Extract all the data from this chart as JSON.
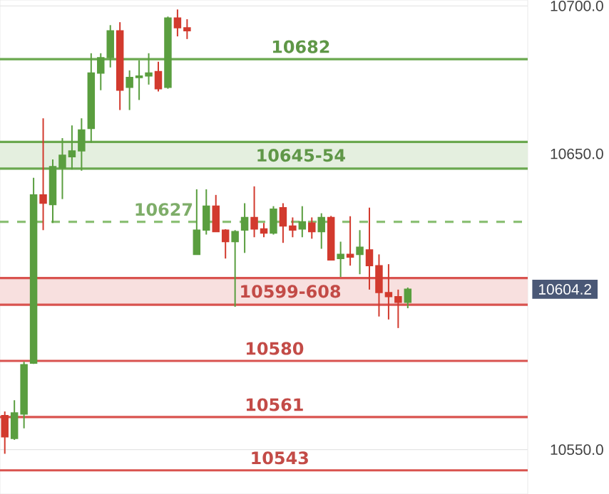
{
  "chart_data": {
    "type": "candlestick",
    "categories": [
      null,
      null,
      null,
      null,
      null,
      null,
      null,
      null,
      null,
      null,
      null,
      null,
      null,
      null,
      null,
      null,
      null,
      null,
      null,
      null,
      null,
      null,
      null,
      null,
      null,
      null,
      null,
      null,
      null,
      null,
      null,
      null,
      null,
      null,
      null,
      null,
      null,
      null,
      null,
      null,
      null,
      null,
      null,
      null,
      null,
      null,
      null,
      null,
      null,
      null,
      null,
      null,
      null,
      null,
      null
    ],
    "ohlc": [
      [
        10561.5,
        10562.9,
        10548.6,
        10554.3
      ],
      [
        10553.8,
        10566.7,
        10553.3,
        10562.4
      ],
      [
        10562.0,
        10579.7,
        10557.2,
        10578.7
      ],
      [
        10579.2,
        10641.9,
        10579.0,
        10636.1
      ],
      [
        10636.1,
        10662.0,
        10624.2,
        10633.3
      ],
      [
        10632.8,
        10648.1,
        10626.6,
        10645.7
      ],
      [
        10645.2,
        10655.3,
        10634.7,
        10649.5
      ],
      [
        10649.0,
        10659.6,
        10644.7,
        10651.0
      ],
      [
        10651.0,
        10662.0,
        10644.3,
        10658.1
      ],
      [
        10658.6,
        10684.0,
        10653.8,
        10677.3
      ],
      [
        10677.3,
        10684.0,
        10671.5,
        10682.5
      ],
      [
        10682.5,
        10693.5,
        10679.2,
        10691.6
      ],
      [
        10691.6,
        10694.5,
        10664.8,
        10671.5
      ],
      [
        10672.5,
        10678.2,
        10664.8,
        10675.8
      ],
      [
        10675.8,
        10681.6,
        10668.2,
        10676.3
      ],
      [
        10676.3,
        10684.0,
        10673.4,
        10677.3
      ],
      [
        10677.8,
        10681.1,
        10671.1,
        10672.0
      ],
      [
        10672.5,
        10696.4,
        10672.0,
        10695.9
      ],
      [
        10695.9,
        10698.8,
        10689.7,
        10692.6
      ],
      [
        10692.6,
        10695.5,
        10688.8,
        10691.6
      ],
      [
        10616.0,
        10638.0,
        10616.0,
        10624.2
      ],
      [
        10624.2,
        10638.0,
        10622.7,
        10632.3
      ],
      [
        10632.3,
        10636.1,
        10623.7,
        10623.7
      ],
      [
        10624.2,
        10624.5,
        10614.6,
        10620.3
      ],
      [
        10620.3,
        10624.2,
        10598.3,
        10623.7
      ],
      [
        10624.2,
        10633.3,
        10616.5,
        10628.5
      ],
      [
        10628.5,
        10639.0,
        10621.8,
        10624.6
      ],
      [
        10624.6,
        10626.6,
        10621.8,
        10623.2
      ],
      [
        10623.2,
        10632.3,
        10622.7,
        10631.3
      ],
      [
        10631.8,
        10633.3,
        10619.9,
        10625.6
      ],
      [
        10625.6,
        10628.5,
        10621.8,
        10624.2
      ],
      [
        10624.6,
        10632.3,
        10621.8,
        10627.0
      ],
      [
        10626.6,
        10628.5,
        10621.3,
        10623.7
      ],
      [
        10623.7,
        10629.9,
        10617.9,
        10628.5
      ],
      [
        10628.5,
        10629.0,
        10614.0,
        10614.1
      ],
      [
        10614.6,
        10620.3,
        10608.4,
        10616.0
      ],
      [
        10616.0,
        10628.9,
        10612.2,
        10615.1
      ],
      [
        10616.0,
        10624.2,
        10609.3,
        10618.4
      ],
      [
        10617.5,
        10631.8,
        10604.1,
        10612.2
      ],
      [
        10612.2,
        10616.0,
        10595.0,
        10603.1
      ],
      [
        10603.1,
        10612.7,
        10594.0,
        10601.7
      ],
      [
        10601.7,
        10604.1,
        10591.1,
        10599.8
      ],
      [
        10599.8,
        10604.8,
        10597.8,
        10604.2
      ],
      null,
      null,
      null,
      null,
      null,
      null,
      null,
      null,
      null,
      null,
      null,
      null
    ],
    "colors": [
      "#d23a2e",
      "#5a9e3f",
      "#5a9e3f",
      "#5a9e3f",
      "#d23a2e",
      "#5a9e3f",
      "#5a9e3f",
      "#5a9e3f",
      "#5a9e3f",
      "#5a9e3f",
      "#5a9e3f",
      "#5a9e3f",
      "#d23a2e",
      "#5a9e3f",
      "#5a9e3f",
      "#5a9e3f",
      "#d23a2e",
      "#5a9e3f",
      "#d23a2e",
      "#d23a2e",
      "#5a9e3f",
      "#5a9e3f",
      "#d23a2e",
      "#d23a2e",
      "#5a9e3f",
      "#5a9e3f",
      "#d23a2e",
      "#d23a2e",
      "#5a9e3f",
      "#d23a2e",
      "#d23a2e",
      "#5a9e3f",
      "#d23a2e",
      "#5a9e3f",
      "#d23a2e",
      "#5a9e3f",
      "#d23a2e",
      "#5a9e3f",
      "#d23a2e",
      "#d23a2e",
      "#d23a2e",
      "#d23a2e",
      "#5a9e3f",
      null,
      null,
      null,
      null,
      null,
      null,
      null,
      null,
      null,
      null,
      null,
      null
    ],
    "ylim": [
      10535,
      10702
    ],
    "yticks": [
      {
        "value": 10550,
        "label": "10550.0"
      },
      {
        "value": 10650,
        "label": "10650.0"
      },
      {
        "value": 10700,
        "label": "10700.0"
      }
    ],
    "grid": "y",
    "ref_lines": [
      {
        "axis": "y",
        "value": 10682,
        "label": "10682",
        "color": "#6aa84f",
        "line_style": "solid"
      },
      {
        "axis": "y",
        "value": 10627,
        "label": "10627",
        "color": "#8cc075",
        "line_style": "dashed"
      },
      {
        "axis": "y",
        "value": 10580,
        "label": "10580",
        "color": "#d9534f",
        "line_style": "solid"
      },
      {
        "axis": "y",
        "value": 10561,
        "label": "10561",
        "color": "#d9534f",
        "line_style": "solid"
      },
      {
        "axis": "y",
        "value": 10543,
        "label": "10543",
        "color": "#d9534f",
        "line_style": "solid"
      },
      {
        "axis": "y",
        "value": 10645,
        "color": "#6aa84f",
        "line_style": "solid"
      },
      {
        "axis": "y",
        "value": 10654,
        "color": "#6aa84f",
        "line_style": "solid"
      },
      {
        "axis": "y",
        "value": 10599,
        "color": "#d9534f",
        "line_style": "solid"
      },
      {
        "axis": "y",
        "value": 10608,
        "color": "#d9534f",
        "line_style": "solid"
      }
    ],
    "bands": [
      {
        "axis": "y",
        "from": 10645,
        "to": 10654,
        "label": "10645-54",
        "color": "#e4efdf"
      },
      {
        "axis": "y",
        "from": 10599,
        "to": 10608,
        "label": "10599-608",
        "color": "#f8e0df"
      }
    ],
    "annotations": [
      "10604.2"
    ]
  }
}
